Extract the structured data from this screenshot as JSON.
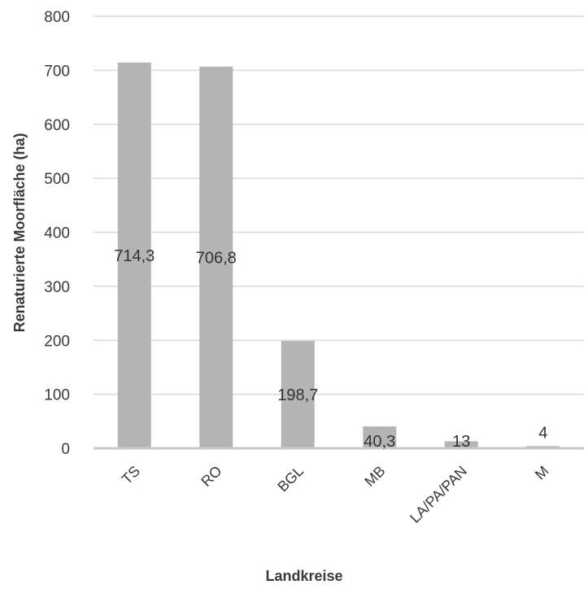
{
  "chart_data": {
    "type": "bar",
    "categories": [
      "TS",
      "RO",
      "BGL",
      "MB",
      "LA/PA/PAN",
      "M"
    ],
    "values": [
      714.3,
      706.8,
      198.7,
      40.3,
      13,
      4
    ],
    "value_labels": [
      "714,3",
      "706,8",
      "198,7",
      "40,3",
      "13",
      "4"
    ],
    "title": "",
    "xlabel": "Landkreise",
    "ylabel": "Renaturierte Moorfläche (ha)",
    "ylim": [
      0,
      800
    ],
    "yticks": [
      "0",
      "100",
      "200",
      "300",
      "400",
      "500",
      "600",
      "700",
      "800"
    ],
    "grid": true,
    "bar_color": "#b4b4b4",
    "grid_color": "#d9d9d9",
    "baseline_color": "#c8c8c8"
  }
}
